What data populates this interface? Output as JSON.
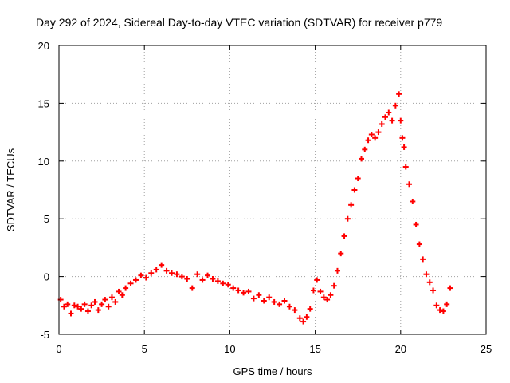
{
  "chart_data": {
    "type": "scatter",
    "title": "Day 292 of 2024, Sidereal Day-to-day VTEC variation (SDTVAR) for receiver p779",
    "xlabel": "GPS time / hours",
    "ylabel": "SDTVAR / TECUs",
    "xlim": [
      0,
      25
    ],
    "ylim": [
      -5,
      20
    ],
    "xticks": [
      0,
      5,
      10,
      15,
      20,
      25
    ],
    "yticks": [
      -5,
      0,
      5,
      10,
      15,
      20
    ],
    "grid": true,
    "marker": "+",
    "series": [
      {
        "name": "SDTVAR",
        "color": "#ff0000",
        "x": [
          0.1,
          0.3,
          0.5,
          0.7,
          0.9,
          1.1,
          1.3,
          1.5,
          1.7,
          1.9,
          2.1,
          2.3,
          2.5,
          2.7,
          2.9,
          3.1,
          3.3,
          3.5,
          3.7,
          3.9,
          4.2,
          4.5,
          4.8,
          5.1,
          5.4,
          5.7,
          6.0,
          6.3,
          6.6,
          6.9,
          7.2,
          7.5,
          7.8,
          8.1,
          8.4,
          8.7,
          9.0,
          9.3,
          9.6,
          9.9,
          10.2,
          10.5,
          10.8,
          11.1,
          11.4,
          11.7,
          12.0,
          12.3,
          12.6,
          12.9,
          13.2,
          13.5,
          13.8,
          14.1,
          14.3,
          14.5,
          14.7,
          14.9,
          15.1,
          15.3,
          15.5,
          15.7,
          15.9,
          16.1,
          16.3,
          16.5,
          16.7,
          16.9,
          17.1,
          17.3,
          17.5,
          17.7,
          17.9,
          18.1,
          18.3,
          18.5,
          18.7,
          18.9,
          19.1,
          19.3,
          19.5,
          19.7,
          19.9,
          20.0,
          20.1,
          20.2,
          20.3,
          20.5,
          20.7,
          20.9,
          21.1,
          21.3,
          21.5,
          21.7,
          21.9,
          22.1,
          22.3,
          22.5,
          22.7,
          22.9
        ],
        "y": [
          -2.0,
          -2.6,
          -2.4,
          -3.2,
          -2.5,
          -2.6,
          -2.8,
          -2.4,
          -3.0,
          -2.5,
          -2.2,
          -2.9,
          -2.4,
          -2.0,
          -2.6,
          -1.8,
          -2.2,
          -1.3,
          -1.6,
          -1.0,
          -0.6,
          -0.3,
          0.1,
          -0.1,
          0.3,
          0.6,
          1.0,
          0.5,
          0.3,
          0.2,
          0.0,
          -0.2,
          -1.0,
          0.2,
          -0.3,
          0.1,
          -0.2,
          -0.4,
          -0.6,
          -0.7,
          -1.0,
          -1.2,
          -1.4,
          -1.3,
          -1.9,
          -1.6,
          -2.1,
          -1.8,
          -2.2,
          -2.4,
          -2.1,
          -2.6,
          -2.9,
          -3.6,
          -3.9,
          -3.5,
          -2.8,
          -1.2,
          -0.3,
          -1.3,
          -1.8,
          -2.0,
          -1.6,
          -0.8,
          0.5,
          2.0,
          3.5,
          5.0,
          6.2,
          7.5,
          8.5,
          10.2,
          11.0,
          11.8,
          12.3,
          12.0,
          12.5,
          13.2,
          13.8,
          14.2,
          13.5,
          14.8,
          15.8,
          13.5,
          12.0,
          11.2,
          9.5,
          8.0,
          6.5,
          4.5,
          2.8,
          1.5,
          0.2,
          -0.5,
          -1.2,
          -2.5,
          -2.9,
          -3.0,
          -2.4,
          -1.0
        ]
      }
    ]
  }
}
